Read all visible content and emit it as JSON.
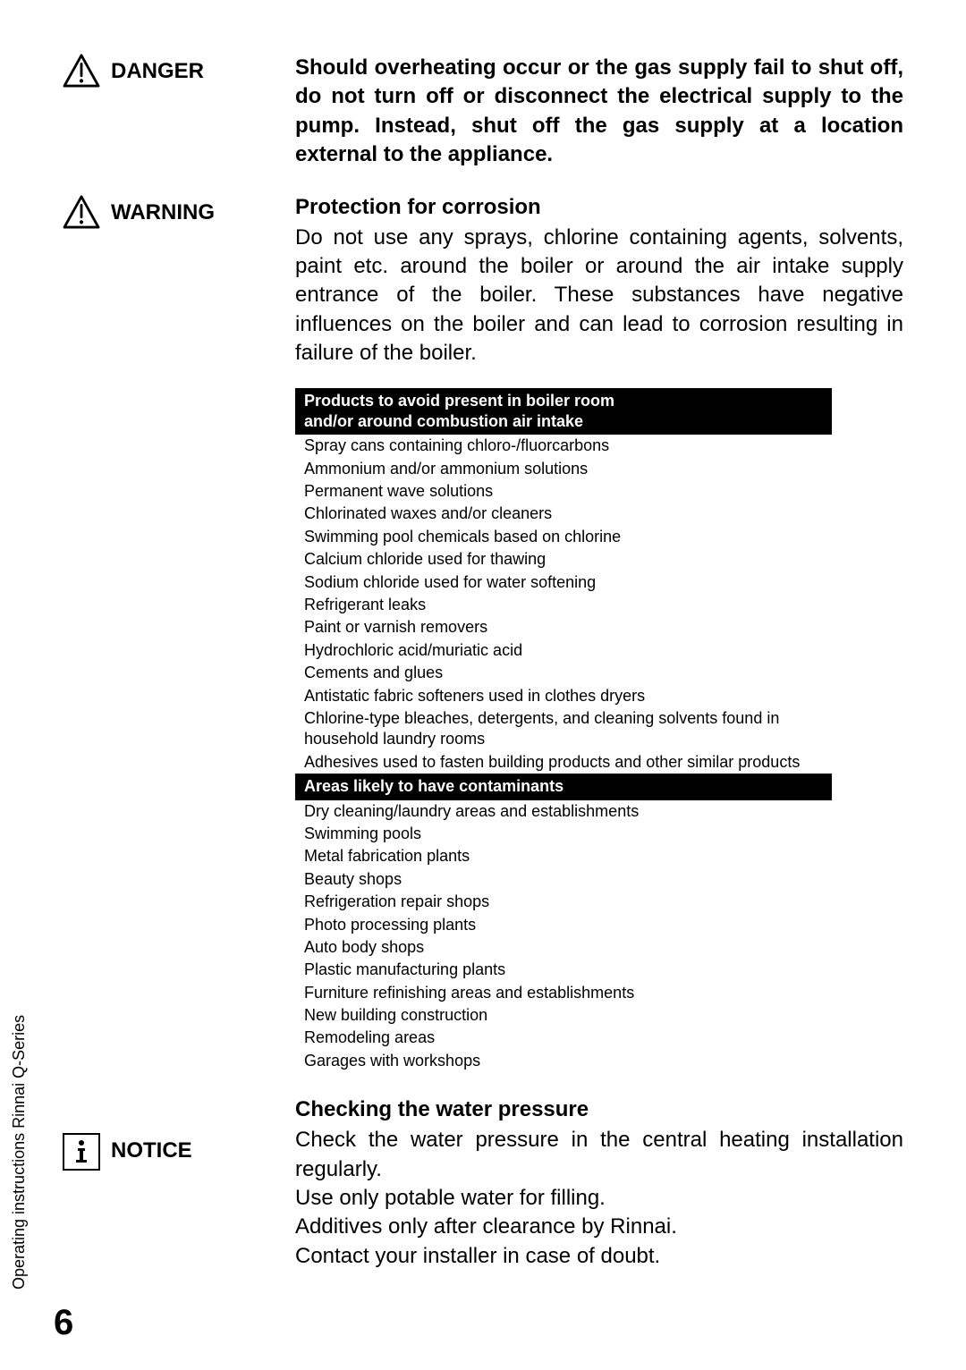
{
  "danger": {
    "label": "DANGER",
    "body": "Should overheating occur or the gas supply fail to shut off, do not turn off or disconnect the electrical supply to the pump. Instead, shut off the gas supply at a location external to the appliance."
  },
  "warning": {
    "label": "WARNING",
    "heading": "Protection for corrosion",
    "body": "Do not use any sprays, chlorine containing agents, solvents, paint etc. around the boiler or around the air intake supply entrance of the boiler. These substances have negative influences on the boiler and can lead to corrosion resulting in failure of the boiler."
  },
  "table": {
    "header1a": "Products to avoid present in boiler room",
    "header1b": "and/or around combustion air intake",
    "products": [
      "Spray cans containing chloro-/fluorcarbons",
      "Ammonium and/or ammonium solutions",
      "Permanent wave solutions",
      "Chlorinated waxes and/or cleaners",
      "Swimming pool chemicals based on chlorine",
      "Calcium chloride used for thawing",
      "Sodium chloride used for water softening",
      "Refrigerant leaks",
      "Paint or varnish removers",
      "Hydrochloric acid/muriatic acid",
      "Cements and glues",
      "Antistatic fabric softeners used in clothes dryers",
      "Chlorine-type bleaches, detergents, and cleaning solvents found in household laundry rooms",
      "Adhesives used to fasten building products and other similar products"
    ],
    "header2": "Areas likely to have contaminants",
    "areas": [
      "Dry cleaning/laundry areas and establishments",
      "Swimming pools",
      "Metal fabrication plants",
      "Beauty shops",
      "Refrigeration repair shops",
      "Photo processing plants",
      "Auto body shops",
      "Plastic manufacturing plants",
      "Furniture refinishing areas and establishments",
      "New building construction",
      "Remodeling areas",
      "Garages with workshops"
    ]
  },
  "notice": {
    "label": "NOTICE",
    "heading": "Checking the water pressure",
    "line1": "Check the water pressure in the central heating installation regularly.",
    "line2": "Use only potable water for filling.",
    "line3": "Additives only after clearance by Rinnai.",
    "line4": "Contact your installer in case of doubt."
  },
  "sideLabel": "Operating instructions Rinnai Q-Series",
  "pageNumber": "6",
  "colors": {
    "bg": "#ffffff",
    "text": "#000000",
    "tableHeaderBg": "#000000",
    "tableHeaderText": "#ffffff"
  },
  "fonts": {
    "body_pt": 24,
    "table_pt": 18,
    "pagenum_pt": 40,
    "side_pt": 18
  }
}
